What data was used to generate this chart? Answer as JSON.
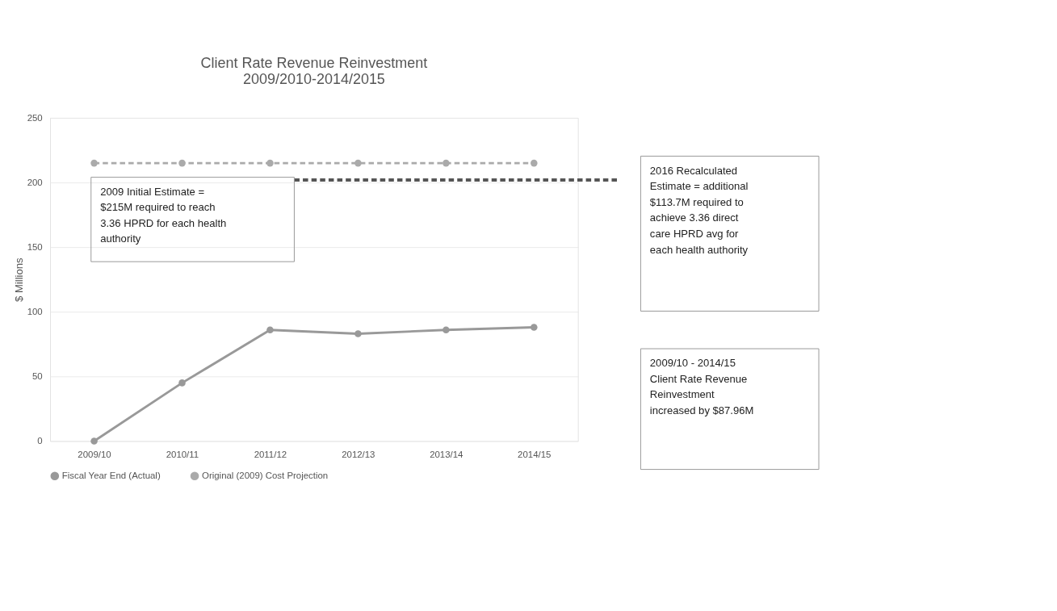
{
  "chart_data": {
    "type": "line",
    "title": "Client Rate Revenue Reinvestment",
    "subtitle": "2009/2010-2014/2015",
    "ylabel": "$ Millions",
    "categories": [
      "2009/10",
      "2010/11",
      "2011/12",
      "2012/13",
      "2013/14",
      "2014/15"
    ],
    "series": [
      {
        "name": "Fiscal Year End (Actual)",
        "color": "#999999",
        "values": [
          0,
          45,
          86,
          83,
          86,
          88
        ],
        "line_style": "solid"
      },
      {
        "name": "Original (2009) Cost Projection",
        "color": "#aaaaaa",
        "values": [
          215,
          215,
          215,
          215,
          215,
          215
        ],
        "line_style": "dashed"
      }
    ],
    "ylim": [
      0,
      250
    ],
    "yticks": [
      0,
      50,
      100,
      150,
      200,
      250
    ],
    "grid": "y",
    "legend": "bottom",
    "marker": "circle",
    "ref_lines": [
      {
        "axis": "y",
        "value": 202,
        "color": "#555555",
        "line_style": "dashed"
      }
    ],
    "annotations": [
      "2009 Initial Estimate = $215M required to reach 3.36 HPRD for each health authority",
      "2016 Recalculated Estimate = additional $113.7M required to achieve 3.36 direct care HPRD avg for each health authority",
      "2009/10 - 2014/15 Client Rate Revenue Reinvestment increased by $87.96M"
    ]
  }
}
